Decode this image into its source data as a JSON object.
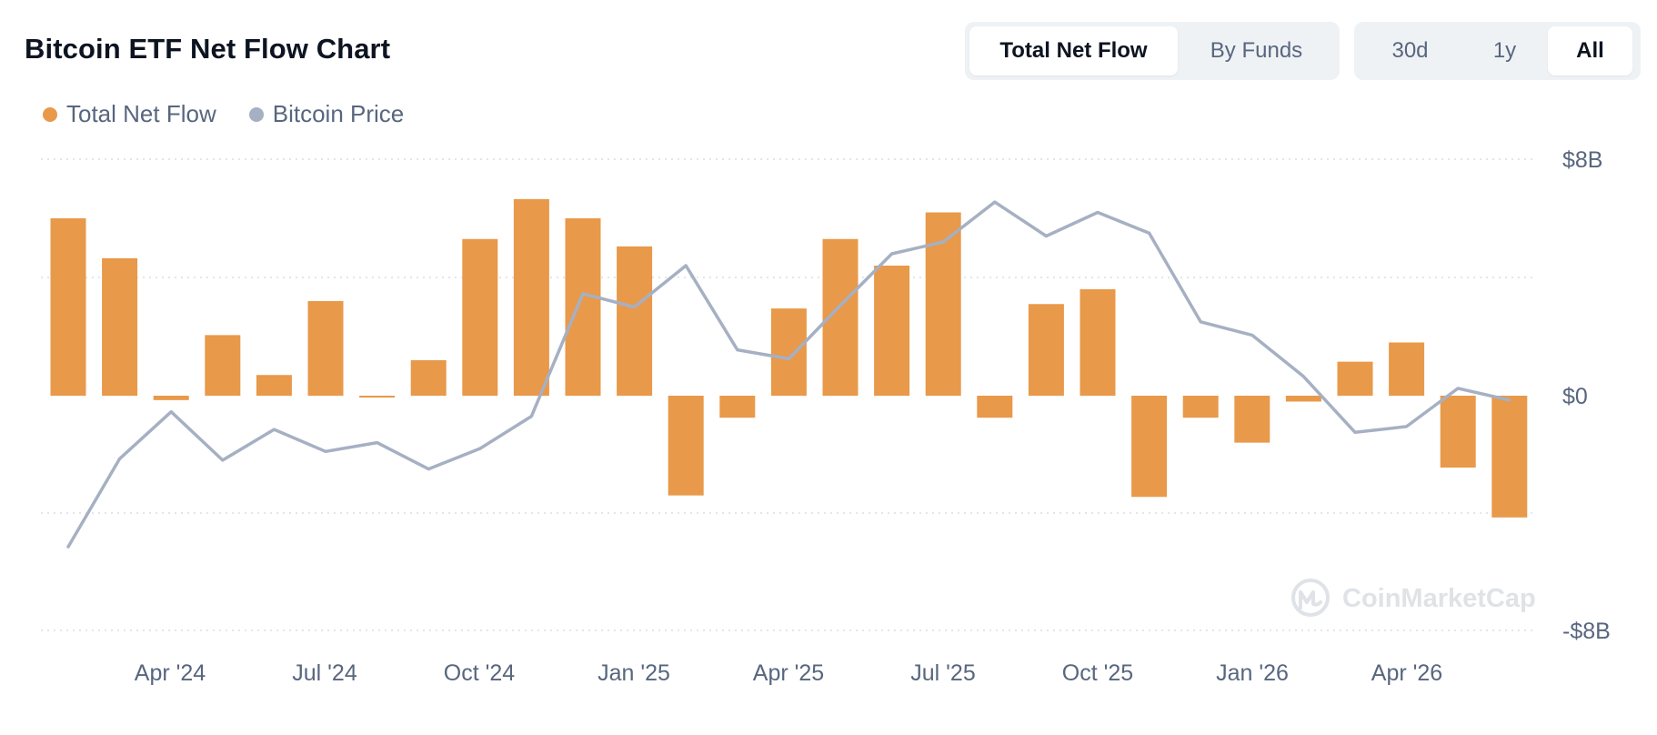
{
  "title": "Bitcoin ETF Net Flow Chart",
  "view_tabs": [
    {
      "label": "Total Net Flow",
      "active": true
    },
    {
      "label": "By Funds",
      "active": false
    }
  ],
  "range_tabs": [
    {
      "label": "30d",
      "active": false
    },
    {
      "label": "1y",
      "active": false
    },
    {
      "label": "All",
      "active": true
    }
  ],
  "legend": [
    {
      "label": "Total Net Flow",
      "color": "#e8994a"
    },
    {
      "label": "Bitcoin Price",
      "color": "#a6b0c3"
    }
  ],
  "watermark": "CoinMarketCap",
  "chart_data": {
    "type": "bar",
    "x_labels": [
      "Apr '24",
      "Jul '24",
      "Oct '24",
      "Jan '25",
      "Apr '25",
      "Jul '25",
      "Oct '25",
      "Jan '26",
      "Apr '26"
    ],
    "y_ticks": [
      "$8B",
      "$0",
      "-$8B"
    ],
    "ylim": [
      -8,
      8
    ],
    "y_unit": "$B",
    "grid": true,
    "series": [
      {
        "name": "Total Net Flow",
        "type": "bar",
        "color": "#e8994a",
        "values": [
          6.0,
          4.65,
          -0.15,
          2.05,
          0.7,
          3.2,
          -0.05,
          1.2,
          5.3,
          6.65,
          6.0,
          5.05,
          -3.4,
          -0.75,
          2.95,
          5.3,
          4.4,
          6.2,
          -0.75,
          3.1,
          3.6,
          -3.45,
          -0.75,
          -1.6,
          -0.2,
          1.15,
          1.8,
          -2.45,
          -4.15
        ]
      },
      {
        "name": "Bitcoin Price",
        "type": "line",
        "color": "#a6b0c3",
        "values": [
          -5.15,
          -2.15,
          -0.55,
          -2.2,
          -1.15,
          -1.9,
          -1.6,
          -2.5,
          -1.8,
          -0.7,
          3.45,
          3.0,
          4.4,
          1.55,
          1.25,
          3.05,
          4.8,
          5.2,
          6.55,
          5.4,
          6.2,
          5.5,
          2.5,
          2.05,
          0.65,
          -1.25,
          -1.05,
          0.25,
          -0.15
        ]
      }
    ]
  }
}
